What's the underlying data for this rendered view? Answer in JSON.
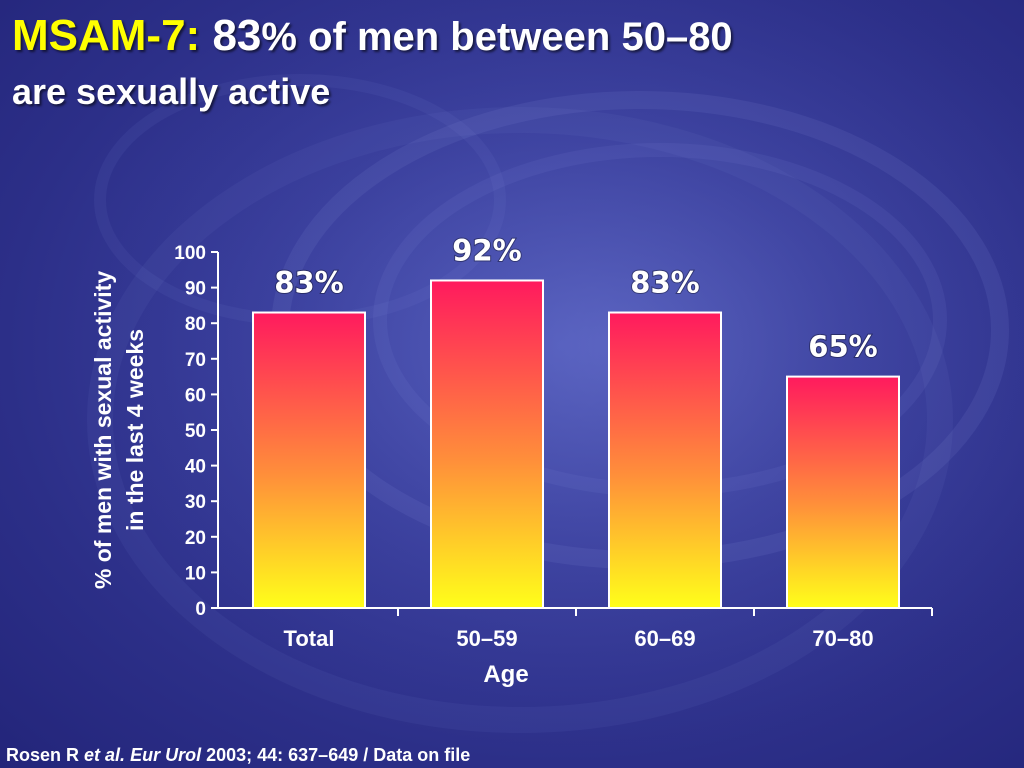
{
  "slide": {
    "title_prefix": "MSAM-7:",
    "title_number": "83",
    "title_rest": "% of men between 50–80",
    "title_line2": "are sexually active"
  },
  "footer": {
    "author": "Rosen R ",
    "etal": "et al.",
    "journal": "Eur Urol",
    "citation": "2003; 44: 637–649 / Data on file"
  },
  "colors": {
    "background": "#2c2f88",
    "title_accent": "#ffff00",
    "bar_top": "#ff1a5e",
    "bar_bottom": "#ffff1a",
    "bar_border": "#ffffff"
  },
  "chart_data": {
    "type": "bar",
    "categories": [
      "Total",
      "50–59",
      "60–69",
      "70–80"
    ],
    "values": [
      83,
      92,
      83,
      65
    ],
    "data_labels": [
      "83%",
      "92%",
      "83%",
      "65%"
    ],
    "xlabel": "Age",
    "ylabel_lines": [
      "% of men with sexual activity",
      "in the last 4 weeks"
    ],
    "ylim": [
      0,
      100
    ],
    "yticks": [
      "0",
      "10",
      "20",
      "30",
      "40",
      "50",
      "60",
      "70",
      "80",
      "90",
      "100"
    ],
    "grid": false,
    "legend": "none"
  }
}
